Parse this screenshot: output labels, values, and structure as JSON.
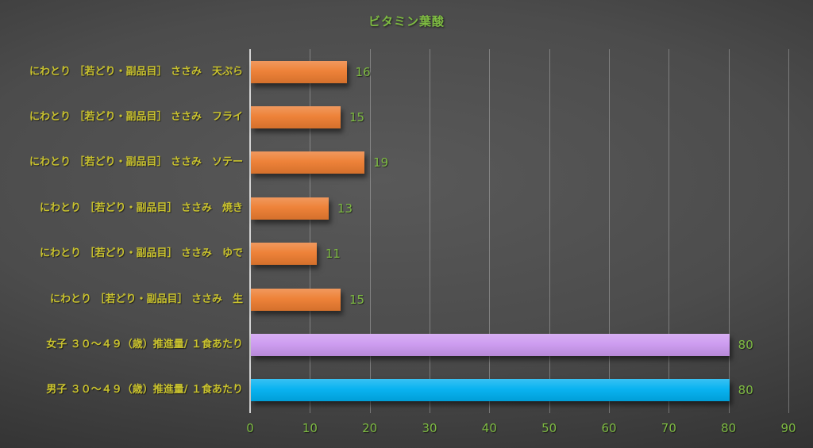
{
  "chart_data": {
    "type": "bar",
    "orientation": "horizontal",
    "title": "ビタミン葉酸",
    "categories": [
      "にわとり ［若どり・副品目］ ささみ　天ぷら",
      "にわとり ［若どり・副品目］ ささみ　フライ",
      "にわとり ［若どり・副品目］ ささみ　ソテー",
      "にわとり ［若どり・副品目］ ささみ　焼き",
      "にわとり ［若どり・副品目］ ささみ　ゆで",
      "にわとり ［若どり・副品目］ ささみ　生",
      "女子 ３０～４９（歳）推進量/ １食あたり",
      "男子 ３０～４９（歳）推進量/ １食あたり"
    ],
    "values": [
      16,
      15,
      19,
      13,
      11,
      15,
      80,
      80
    ],
    "value_labels": [
      "16",
      "15",
      "19",
      "13",
      "11",
      "15",
      "80",
      "80"
    ],
    "bar_colors": [
      "#ED7D31",
      "#ED7D31",
      "#ED7D31",
      "#ED7D31",
      "#ED7D31",
      "#ED7D31",
      "#CC99F0",
      "#00B0F0"
    ],
    "xlim": [
      0,
      90
    ],
    "xticks": [
      "0",
      "10",
      "20",
      "30",
      "40",
      "50",
      "60",
      "70",
      "80",
      "90"
    ],
    "grid": true,
    "legend": "none",
    "colors": {
      "title_text": "#7EBB42",
      "value_text": "#7EBB42",
      "tick_text": "#7EBB42",
      "category_text": "#C9C22E",
      "gridline": "#BEBEBE"
    }
  }
}
